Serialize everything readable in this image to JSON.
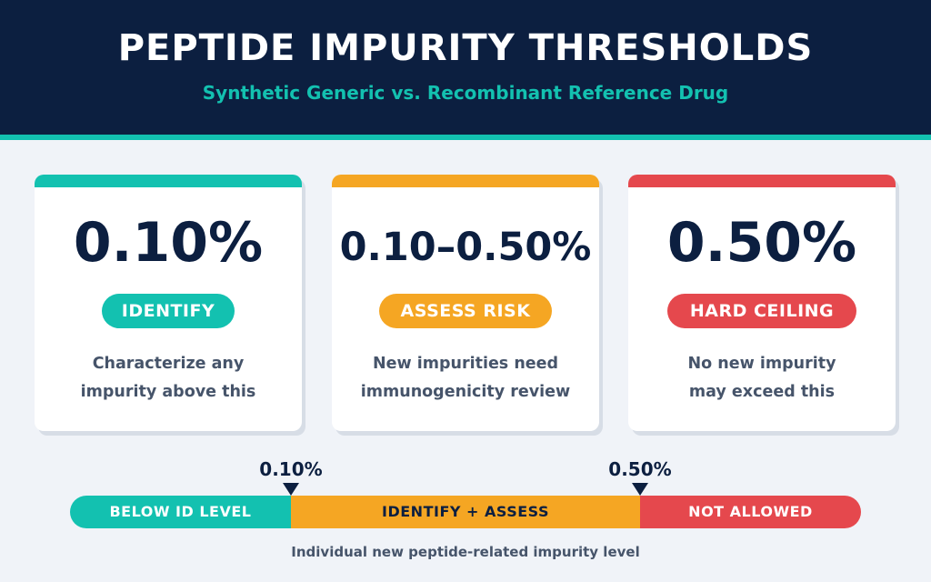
{
  "header": {
    "title": "PEPTIDE IMPURITY THRESHOLDS",
    "subtitle": "Synthetic Generic vs. Recombinant Reference Drug"
  },
  "colors": {
    "navy": "#0c1f40",
    "teal": "#13c1b0",
    "amber": "#f5a623",
    "red": "#e5484d",
    "background": "#f0f3f8"
  },
  "cards": [
    {
      "value": "0.10%",
      "badge": "IDENTIFY",
      "desc_line1": "Characterize any",
      "desc_line2": "impurity above this",
      "color": "#13c1b0"
    },
    {
      "value": "0.10–0.50%",
      "badge": "ASSESS RISK",
      "desc_line1": "New impurities need",
      "desc_line2": "immunogenicity review",
      "color": "#f5a623"
    },
    {
      "value": "0.50%",
      "badge": "HARD CEILING",
      "desc_line1": "No new impurity",
      "desc_line2": "may exceed this",
      "color": "#e5484d"
    }
  ],
  "scale": {
    "markers": [
      "0.10%",
      "0.50%"
    ],
    "segments": [
      {
        "label": "BELOW ID LEVEL",
        "color": "#13c1b0"
      },
      {
        "label": "IDENTIFY + ASSESS",
        "color": "#f5a623"
      },
      {
        "label": "NOT ALLOWED",
        "color": "#e5484d"
      }
    ],
    "caption": "Individual new peptide-related impurity level"
  }
}
